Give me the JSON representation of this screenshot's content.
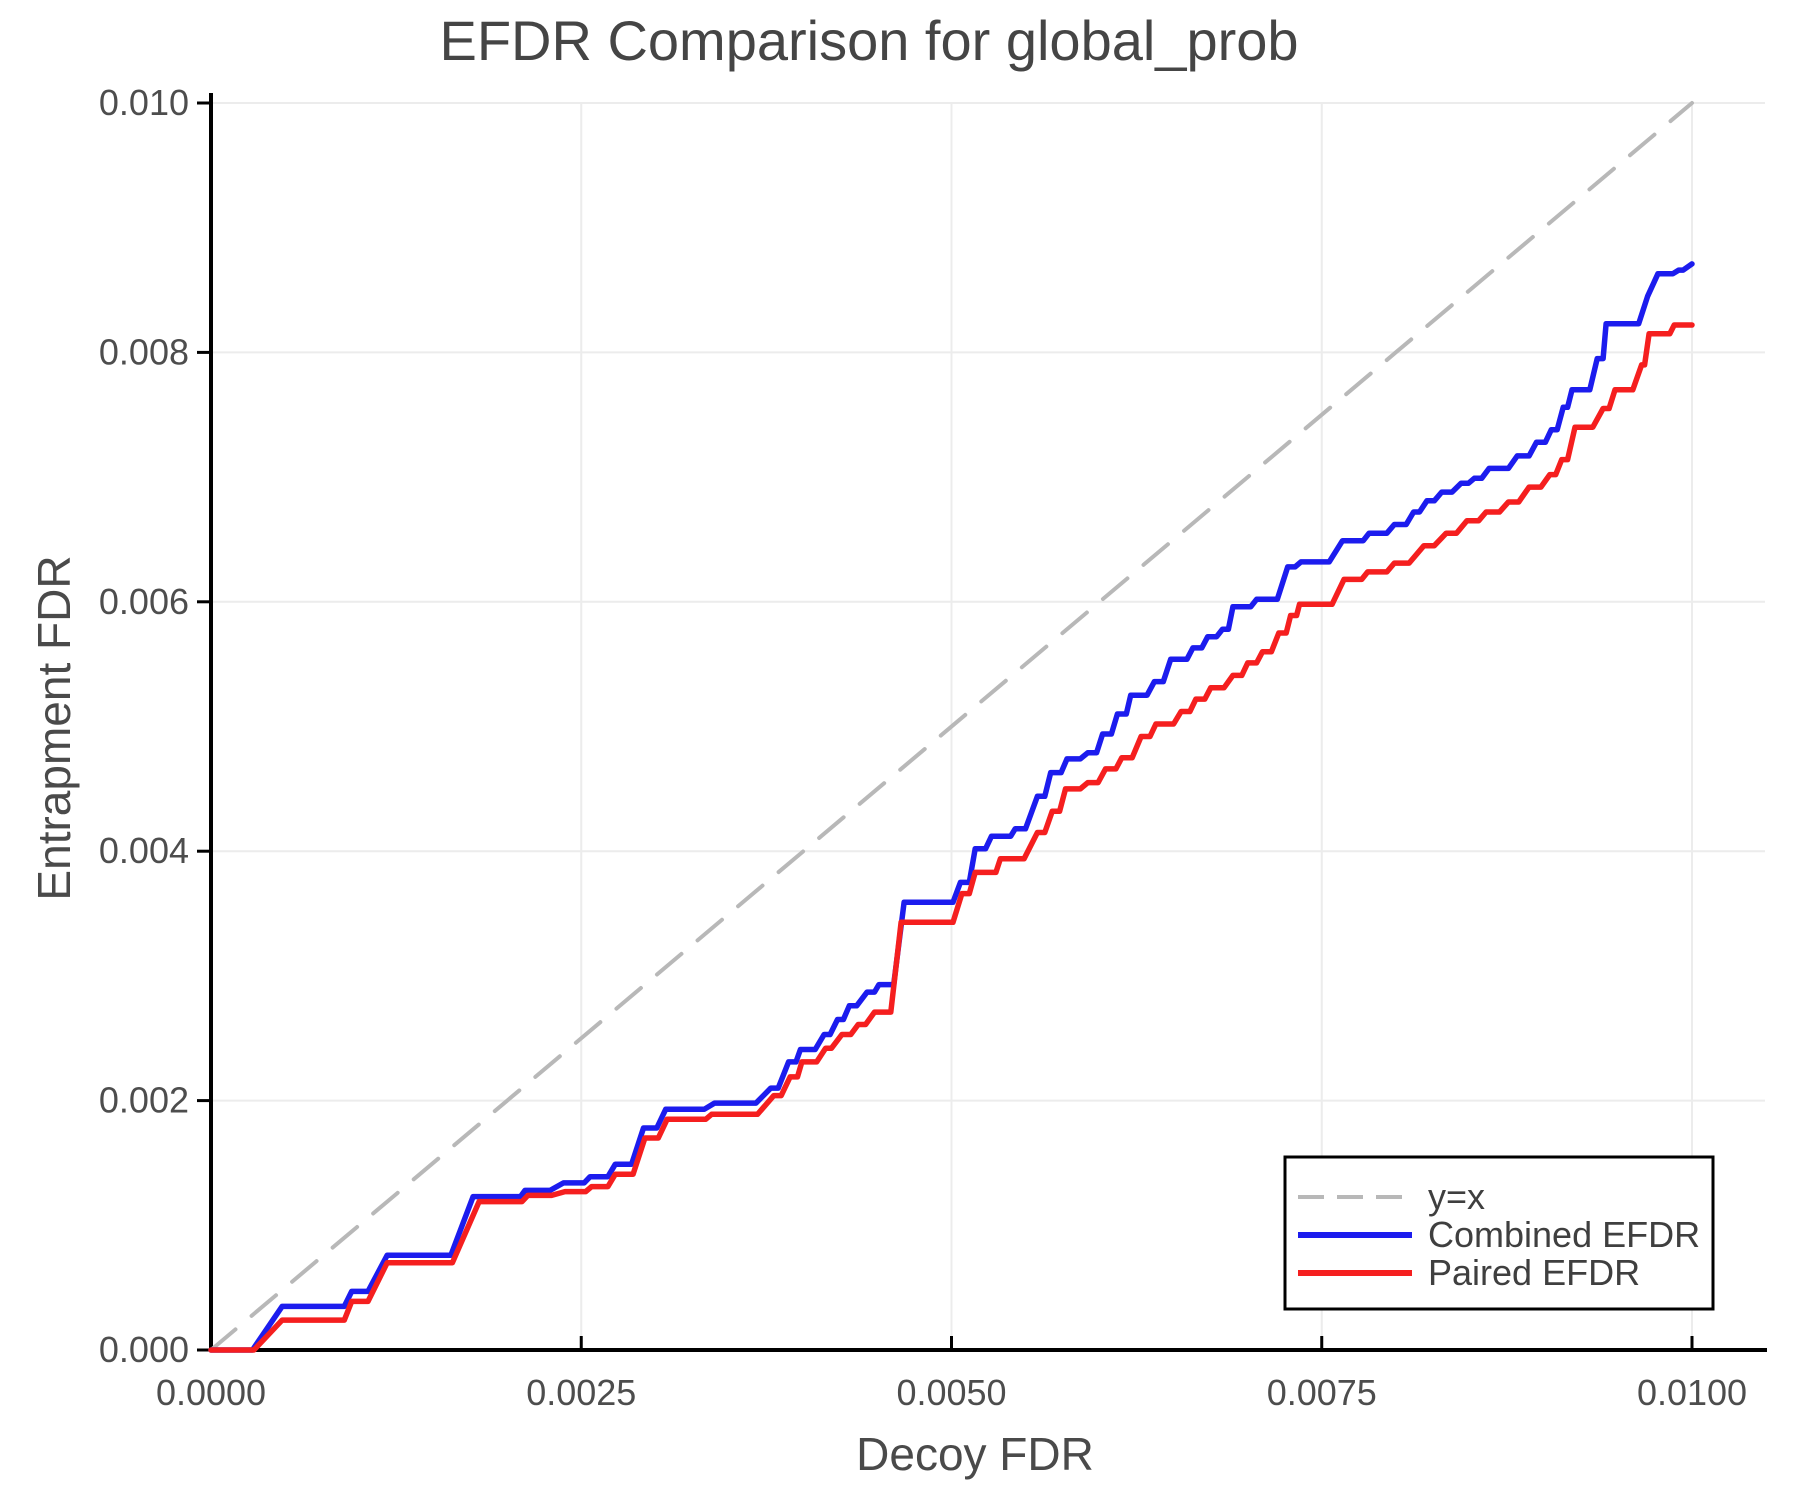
{
  "title": "EFDR Comparison for global_prob",
  "axes": {
    "x_label": "Decoy FDR",
    "y_label": "Entrapment FDR",
    "x_ticks": [
      "0.0000",
      "0.0025",
      "0.0050",
      "0.0075",
      "0.0100"
    ],
    "x_tick_values": [
      0,
      0.0025,
      0.005,
      0.0075,
      0.01
    ],
    "y_ticks": [
      "0.000",
      "0.002",
      "0.004",
      "0.006",
      "0.008",
      "0.010"
    ],
    "y_tick_values": [
      0,
      0.002,
      0.004,
      0.006,
      0.008,
      0.01
    ],
    "x_range": [
      0,
      0.01
    ],
    "y_range": [
      0,
      0.01
    ]
  },
  "colors": {
    "combined": "#1c1cee",
    "paired": "#f51f1f",
    "identity": "#b8b8b8",
    "grid": "#ececec",
    "axis": "#000000",
    "tick_text": "#4d4d4d",
    "title_text": "#454545"
  },
  "legend": {
    "position": "bottom-right",
    "items": [
      "y=x",
      "Combined EFDR",
      "Paired EFDR"
    ]
  },
  "chart_data": {
    "type": "line",
    "title": "EFDR Comparison for global_prob",
    "xlabel": "Decoy FDR",
    "ylabel": "Entrapment FDR",
    "xlim": [
      0,
      0.01
    ],
    "ylim": [
      0,
      0.01
    ],
    "grid": true,
    "legend_position": "bottom-right",
    "series": [
      {
        "name": "y=x",
        "style": "dashed",
        "color": "#b8b8b8",
        "points": [
          [
            0,
            0
          ],
          [
            0.01,
            0.01
          ]
        ]
      },
      {
        "name": "Combined EFDR",
        "style": "solid",
        "color": "#1c1cee",
        "points": [
          [
            0.0,
            0.0
          ],
          [
            0.00028,
            0.0
          ],
          [
            0.00048,
            0.00035
          ],
          [
            0.0009,
            0.00035
          ],
          [
            0.00095,
            0.00047
          ],
          [
            0.00106,
            0.00047
          ],
          [
            0.00119,
            0.00076
          ],
          [
            0.00162,
            0.00076
          ],
          [
            0.00177,
            0.00123
          ],
          [
            0.00209,
            0.00123
          ],
          [
            0.00212,
            0.00128
          ],
          [
            0.00229,
            0.00128
          ],
          [
            0.00238,
            0.00134
          ],
          [
            0.00252,
            0.00134
          ],
          [
            0.00256,
            0.00139
          ],
          [
            0.00268,
            0.00139
          ],
          [
            0.00273,
            0.00149
          ],
          [
            0.00284,
            0.00149
          ],
          [
            0.00292,
            0.00178
          ],
          [
            0.00301,
            0.00178
          ],
          [
            0.00307,
            0.00193
          ],
          [
            0.00333,
            0.00193
          ],
          [
            0.0034,
            0.00198
          ],
          [
            0.00368,
            0.00198
          ],
          [
            0.00378,
            0.0021
          ],
          [
            0.00383,
            0.0021
          ],
          [
            0.0039,
            0.00231
          ],
          [
            0.00395,
            0.00231
          ],
          [
            0.00398,
            0.00241
          ],
          [
            0.00408,
            0.00241
          ],
          [
            0.00414,
            0.00253
          ],
          [
            0.00418,
            0.00253
          ],
          [
            0.00423,
            0.00265
          ],
          [
            0.00427,
            0.00265
          ],
          [
            0.00431,
            0.00276
          ],
          [
            0.00436,
            0.00276
          ],
          [
            0.00443,
            0.00287
          ],
          [
            0.00448,
            0.00287
          ],
          [
            0.00451,
            0.00293
          ],
          [
            0.00461,
            0.00293
          ],
          [
            0.00468,
            0.00359
          ],
          [
            0.00501,
            0.00359
          ],
          [
            0.00506,
            0.00375
          ],
          [
            0.00512,
            0.00375
          ],
          [
            0.00516,
            0.00402
          ],
          [
            0.00523,
            0.00402
          ],
          [
            0.00527,
            0.00412
          ],
          [
            0.0054,
            0.00412
          ],
          [
            0.00543,
            0.00418
          ],
          [
            0.0055,
            0.00418
          ],
          [
            0.00558,
            0.00444
          ],
          [
            0.00563,
            0.00444
          ],
          [
            0.00567,
            0.00463
          ],
          [
            0.00574,
            0.00463
          ],
          [
            0.00578,
            0.00474
          ],
          [
            0.00587,
            0.00474
          ],
          [
            0.00592,
            0.00479
          ],
          [
            0.00598,
            0.00479
          ],
          [
            0.00602,
            0.00494
          ],
          [
            0.00608,
            0.00494
          ],
          [
            0.00612,
            0.0051
          ],
          [
            0.00618,
            0.0051
          ],
          [
            0.00621,
            0.00525
          ],
          [
            0.00632,
            0.00525
          ],
          [
            0.00637,
            0.00536
          ],
          [
            0.00643,
            0.00536
          ],
          [
            0.00648,
            0.00554
          ],
          [
            0.00659,
            0.00554
          ],
          [
            0.00663,
            0.00563
          ],
          [
            0.00669,
            0.00563
          ],
          [
            0.00673,
            0.00572
          ],
          [
            0.00679,
            0.00572
          ],
          [
            0.00683,
            0.00578
          ],
          [
            0.00687,
            0.00578
          ],
          [
            0.0069,
            0.00596
          ],
          [
            0.00702,
            0.00596
          ],
          [
            0.00706,
            0.00602
          ],
          [
            0.0072,
            0.00602
          ],
          [
            0.00727,
            0.00628
          ],
          [
            0.00732,
            0.00628
          ],
          [
            0.00736,
            0.00632
          ],
          [
            0.00755,
            0.00632
          ],
          [
            0.00764,
            0.00649
          ],
          [
            0.00778,
            0.00649
          ],
          [
            0.00782,
            0.00655
          ],
          [
            0.00794,
            0.00655
          ],
          [
            0.00799,
            0.00662
          ],
          [
            0.00807,
            0.00662
          ],
          [
            0.00812,
            0.00672
          ],
          [
            0.00816,
            0.00672
          ],
          [
            0.00821,
            0.00681
          ],
          [
            0.00826,
            0.00681
          ],
          [
            0.00831,
            0.00688
          ],
          [
            0.00838,
            0.00688
          ],
          [
            0.00844,
            0.00695
          ],
          [
            0.00849,
            0.00695
          ],
          [
            0.00853,
            0.00699
          ],
          [
            0.00858,
            0.00699
          ],
          [
            0.00863,
            0.00707
          ],
          [
            0.00876,
            0.00707
          ],
          [
            0.00882,
            0.00717
          ],
          [
            0.0089,
            0.00717
          ],
          [
            0.00895,
            0.00728
          ],
          [
            0.00901,
            0.00728
          ],
          [
            0.00905,
            0.00738
          ],
          [
            0.00909,
            0.00738
          ],
          [
            0.00913,
            0.00756
          ],
          [
            0.00916,
            0.00756
          ],
          [
            0.00919,
            0.0077
          ],
          [
            0.00931,
            0.0077
          ],
          [
            0.00936,
            0.00795
          ],
          [
            0.0094,
            0.00795
          ],
          [
            0.00942,
            0.00823
          ],
          [
            0.00964,
            0.00823
          ],
          [
            0.0097,
            0.00845
          ],
          [
            0.00977,
            0.00863
          ],
          [
            0.00987,
            0.00863
          ],
          [
            0.00991,
            0.00866
          ],
          [
            0.00994,
            0.00866
          ],
          [
            0.01,
            0.00871
          ]
        ]
      },
      {
        "name": "Paired EFDR",
        "style": "solid",
        "color": "#f51f1f",
        "points": [
          [
            0.0,
            0.0
          ],
          [
            0.00029,
            0.0
          ],
          [
            0.00048,
            0.00024
          ],
          [
            0.0009,
            0.00024
          ],
          [
            0.00095,
            0.00039
          ],
          [
            0.00106,
            0.00039
          ],
          [
            0.00119,
            0.0007
          ],
          [
            0.00163,
            0.0007
          ],
          [
            0.00181,
            0.00119
          ],
          [
            0.0021,
            0.00119
          ],
          [
            0.00214,
            0.00124
          ],
          [
            0.0023,
            0.00124
          ],
          [
            0.00239,
            0.00127
          ],
          [
            0.00253,
            0.00127
          ],
          [
            0.00257,
            0.00131
          ],
          [
            0.00268,
            0.00131
          ],
          [
            0.00273,
            0.00141
          ],
          [
            0.00285,
            0.00141
          ],
          [
            0.00293,
            0.0017
          ],
          [
            0.00302,
            0.0017
          ],
          [
            0.00308,
            0.00185
          ],
          [
            0.00334,
            0.00185
          ],
          [
            0.00338,
            0.00189
          ],
          [
            0.00369,
            0.00189
          ],
          [
            0.0038,
            0.00204
          ],
          [
            0.00385,
            0.00204
          ],
          [
            0.00391,
            0.00219
          ],
          [
            0.00396,
            0.00219
          ],
          [
            0.00399,
            0.00231
          ],
          [
            0.00409,
            0.00231
          ],
          [
            0.00415,
            0.00242
          ],
          [
            0.00419,
            0.00242
          ],
          [
            0.00426,
            0.00253
          ],
          [
            0.00432,
            0.00253
          ],
          [
            0.00437,
            0.00261
          ],
          [
            0.00442,
            0.00261
          ],
          [
            0.00448,
            0.00271
          ],
          [
            0.00459,
            0.00271
          ],
          [
            0.00466,
            0.00343
          ],
          [
            0.00501,
            0.00343
          ],
          [
            0.00507,
            0.00366
          ],
          [
            0.00512,
            0.00366
          ],
          [
            0.00516,
            0.00383
          ],
          [
            0.0053,
            0.00383
          ],
          [
            0.00533,
            0.00394
          ],
          [
            0.00549,
            0.00394
          ],
          [
            0.00558,
            0.00415
          ],
          [
            0.00563,
            0.00415
          ],
          [
            0.00568,
            0.00432
          ],
          [
            0.00573,
            0.00432
          ],
          [
            0.00577,
            0.0045
          ],
          [
            0.00587,
            0.0045
          ],
          [
            0.00592,
            0.00455
          ],
          [
            0.00599,
            0.00455
          ],
          [
            0.00604,
            0.00466
          ],
          [
            0.00611,
            0.00466
          ],
          [
            0.00615,
            0.00475
          ],
          [
            0.00622,
            0.00475
          ],
          [
            0.00628,
            0.00492
          ],
          [
            0.00634,
            0.00492
          ],
          [
            0.00638,
            0.00502
          ],
          [
            0.0065,
            0.00502
          ],
          [
            0.00655,
            0.00512
          ],
          [
            0.00661,
            0.00512
          ],
          [
            0.00665,
            0.00522
          ],
          [
            0.00671,
            0.00522
          ],
          [
            0.00675,
            0.00531
          ],
          [
            0.00684,
            0.00531
          ],
          [
            0.0069,
            0.00541
          ],
          [
            0.00696,
            0.00541
          ],
          [
            0.007,
            0.00551
          ],
          [
            0.00706,
            0.00551
          ],
          [
            0.0071,
            0.0056
          ],
          [
            0.00716,
            0.0056
          ],
          [
            0.00721,
            0.00575
          ],
          [
            0.00726,
            0.00575
          ],
          [
            0.00729,
            0.00589
          ],
          [
            0.00733,
            0.00589
          ],
          [
            0.00735,
            0.00598
          ],
          [
            0.00757,
            0.00598
          ],
          [
            0.00765,
            0.00618
          ],
          [
            0.00777,
            0.00618
          ],
          [
            0.00781,
            0.00624
          ],
          [
            0.00794,
            0.00624
          ],
          [
            0.00799,
            0.00631
          ],
          [
            0.00809,
            0.00631
          ],
          [
            0.00819,
            0.00645
          ],
          [
            0.00826,
            0.00645
          ],
          [
            0.00834,
            0.00655
          ],
          [
            0.00841,
            0.00655
          ],
          [
            0.00848,
            0.00665
          ],
          [
            0.00856,
            0.00665
          ],
          [
            0.00861,
            0.00672
          ],
          [
            0.0087,
            0.00672
          ],
          [
            0.00876,
            0.0068
          ],
          [
            0.00883,
            0.0068
          ],
          [
            0.0089,
            0.00692
          ],
          [
            0.00898,
            0.00692
          ],
          [
            0.00904,
            0.00702
          ],
          [
            0.00908,
            0.00702
          ],
          [
            0.00912,
            0.00714
          ],
          [
            0.00916,
            0.00714
          ],
          [
            0.00921,
            0.0074
          ],
          [
            0.00933,
            0.0074
          ],
          [
            0.0094,
            0.00755
          ],
          [
            0.00944,
            0.00755
          ],
          [
            0.00948,
            0.0077
          ],
          [
            0.0096,
            0.0077
          ],
          [
            0.00966,
            0.0079
          ],
          [
            0.00968,
            0.0079
          ],
          [
            0.00971,
            0.00815
          ],
          [
            0.00985,
            0.00815
          ],
          [
            0.00988,
            0.00822
          ],
          [
            0.01,
            0.00822
          ]
        ]
      }
    ]
  }
}
